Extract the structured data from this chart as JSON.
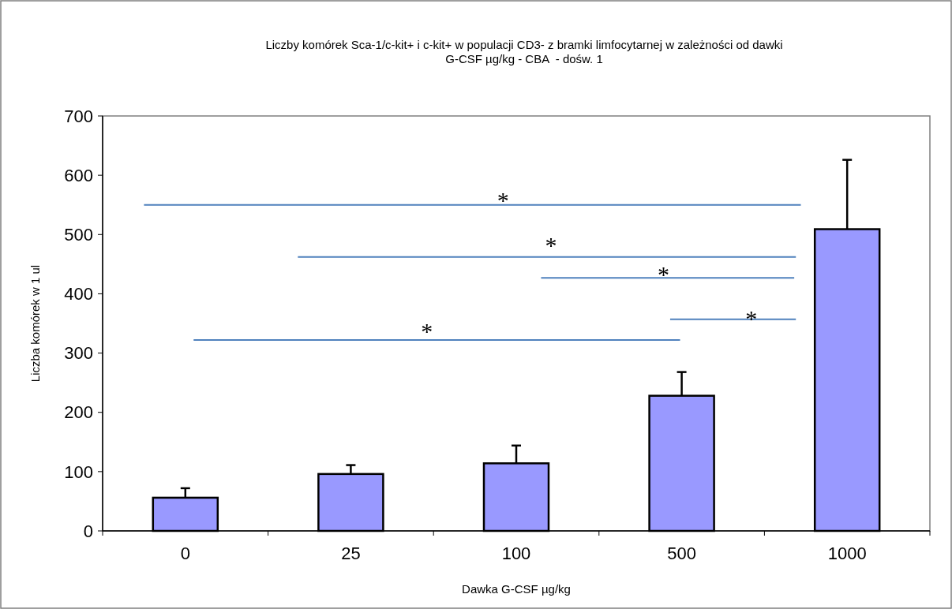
{
  "chart_data": {
    "type": "bar",
    "title": "Liczby komórek Sca-1/c-kit+ i c-kit+ w populacji CD3- z bramki limfocytarnej w zależności od dawki G-CSF µg/kg - CBA  - dośw. 1",
    "xlabel": "Dawka G-CSF µg/kg",
    "ylabel": "Liczba komórek w 1 ul",
    "categories": [
      "0",
      "25",
      "100",
      "500",
      "1000"
    ],
    "values": [
      56,
      96,
      114,
      228,
      509
    ],
    "errors": [
      [
        56,
        72
      ],
      [
        96,
        111
      ],
      [
        114,
        144
      ],
      [
        228,
        268
      ],
      [
        509,
        626
      ]
    ],
    "color": "#9999ff",
    "ylim": [
      0,
      700
    ],
    "yticks": [
      0,
      100,
      200,
      300,
      400,
      500,
      600,
      700
    ],
    "annotations": [
      "*",
      "*",
      "*",
      "*",
      "*"
    ]
  }
}
